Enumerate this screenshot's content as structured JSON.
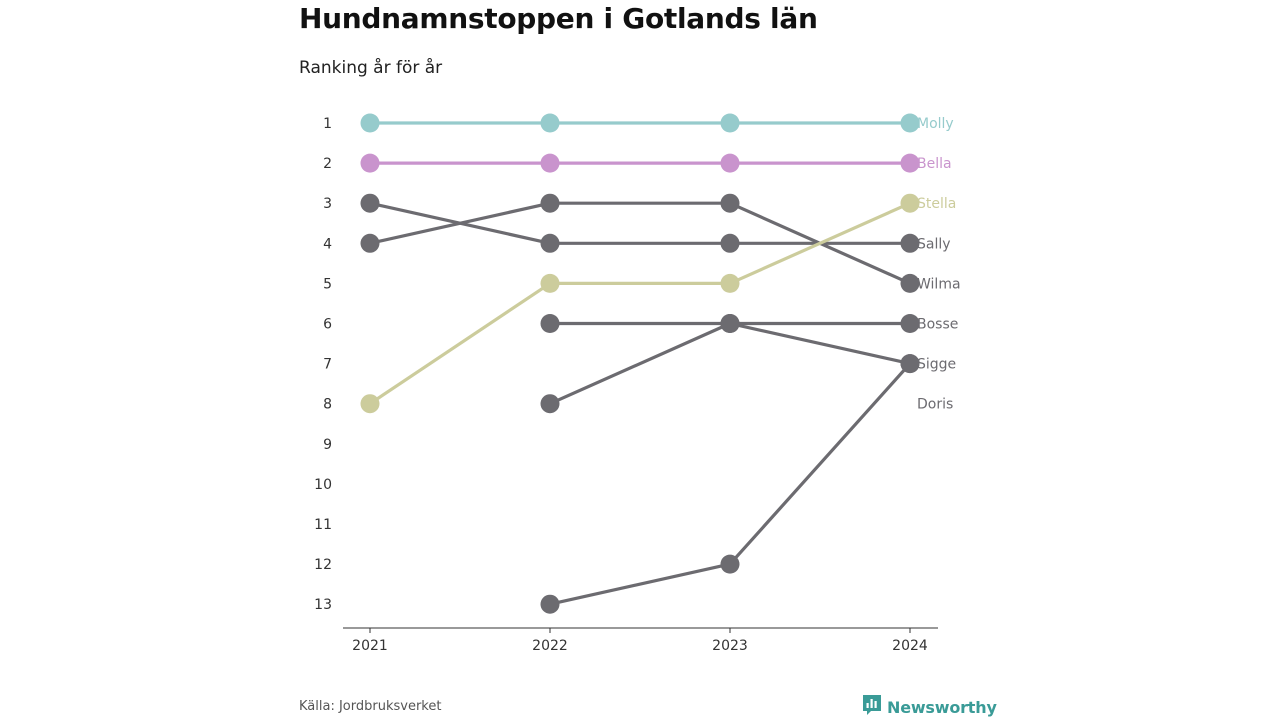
{
  "title": "Hundnamnstoppen i Gotlands län",
  "subtitle": "Ranking år för år",
  "source": "Källa: Jordbruksverket",
  "brand": {
    "name": "Newsworthy",
    "icon": "newsworthy-logo-icon",
    "color": "#3a9b97"
  },
  "chart_data": {
    "type": "line",
    "title": "Hundnamnstoppen i Gotlands län",
    "subtitle": "Ranking år för år",
    "xlabel": "",
    "ylabel": "",
    "x": [
      "2021",
      "2022",
      "2023",
      "2024"
    ],
    "y_ticks": [
      "1",
      "2",
      "3",
      "4",
      "5",
      "6",
      "7",
      "8",
      "9",
      "10",
      "11",
      "12",
      "13"
    ],
    "ylim": [
      1,
      13
    ],
    "y_reversed": true,
    "grid": false,
    "series": [
      {
        "name": "Molly",
        "values": [
          1,
          1,
          1,
          1
        ],
        "color": "#96cbcc"
      },
      {
        "name": "Bella",
        "values": [
          2,
          2,
          2,
          2
        ],
        "color": "#c994cd"
      },
      {
        "name": "Stella",
        "values": [
          8,
          5,
          5,
          3
        ],
        "color": "#cccc9c"
      },
      {
        "name": "Sally",
        "values": [
          3,
          4,
          4,
          4
        ],
        "color": "#6c6b70"
      },
      {
        "name": "Wilma",
        "values": [
          4,
          3,
          3,
          5
        ],
        "color": "#6c6b70"
      },
      {
        "name": "Bosse",
        "values": [
          null,
          6,
          6,
          6
        ],
        "color": "#6c6b70"
      },
      {
        "name": "Sigge",
        "values": [
          null,
          8,
          6,
          7
        ],
        "color": "#6c6b70"
      },
      {
        "name": "Doris",
        "values": [
          null,
          13,
          12,
          7
        ],
        "color": "#6c6b70"
      }
    ]
  }
}
